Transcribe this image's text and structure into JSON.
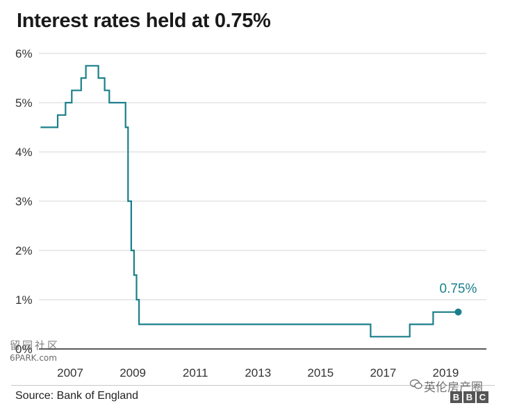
{
  "chart_data": {
    "type": "line",
    "title": "Interest rates held at 0.75%",
    "source": "Source: Bank of England",
    "step": true,
    "xlim": [
      2006.0,
      2020.3
    ],
    "ylim": [
      0,
      6
    ],
    "y_ticks": [
      {
        "value": 0,
        "label": "0%"
      },
      {
        "value": 1,
        "label": "1%"
      },
      {
        "value": 2,
        "label": "2%"
      },
      {
        "value": 3,
        "label": "3%"
      },
      {
        "value": 4,
        "label": "4%"
      },
      {
        "value": 5,
        "label": "5%"
      },
      {
        "value": 6,
        "label": "6%"
      }
    ],
    "x_ticks": [
      {
        "value": 2007,
        "label": "2007"
      },
      {
        "value": 2009,
        "label": "2009"
      },
      {
        "value": 2011,
        "label": "2011"
      },
      {
        "value": 2013,
        "label": "2013"
      },
      {
        "value": 2015,
        "label": "2015"
      },
      {
        "value": 2017,
        "label": "2017"
      },
      {
        "value": 2019,
        "label": "2019"
      }
    ],
    "grid": true,
    "series": [
      {
        "color": "#1a7f8a",
        "points": [
          [
            2006.05,
            4.5
          ],
          [
            2006.6,
            4.75
          ],
          [
            2006.85,
            5.0
          ],
          [
            2007.05,
            5.25
          ],
          [
            2007.35,
            5.5
          ],
          [
            2007.5,
            5.75
          ],
          [
            2007.9,
            5.5
          ],
          [
            2008.1,
            5.25
          ],
          [
            2008.25,
            5.0
          ],
          [
            2008.77,
            4.5
          ],
          [
            2008.85,
            3.0
          ],
          [
            2008.95,
            2.0
          ],
          [
            2009.04,
            1.5
          ],
          [
            2009.12,
            1.0
          ],
          [
            2009.2,
            0.5
          ],
          [
            2016.6,
            0.25
          ],
          [
            2017.85,
            0.5
          ],
          [
            2018.6,
            0.75
          ],
          [
            2019.4,
            0.75
          ]
        ]
      }
    ],
    "end_label": "0.75%"
  },
  "watermarks": {
    "left_line1": "留园社区",
    "left_line2": "6PARK.com",
    "right_text": "英伦房产圈",
    "bbc_letters": [
      "B",
      "B",
      "C"
    ]
  }
}
